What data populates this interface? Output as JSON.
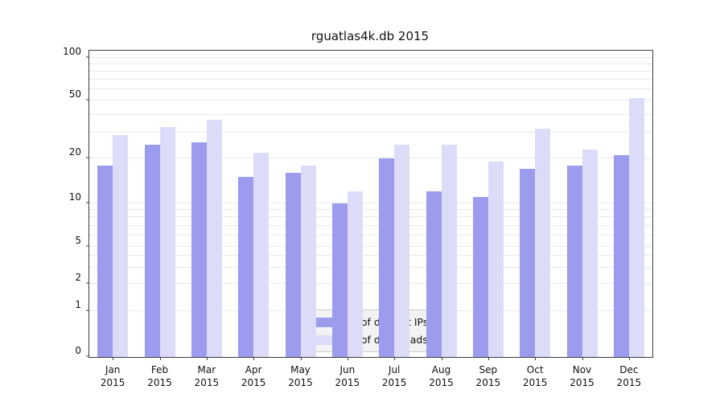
{
  "chart_data": {
    "type": "bar",
    "title": "rguatlas4k.db 2015",
    "categories": [
      "Jan",
      "Feb",
      "Mar",
      "Apr",
      "May",
      "Jun",
      "Jul",
      "Aug",
      "Sep",
      "Oct",
      "Nov",
      "Dec"
    ],
    "year": "2015",
    "series": [
      {
        "name": "Nb of distinct IPs",
        "color": "#9c9cee",
        "values": [
          18,
          25,
          26,
          15,
          16,
          10,
          20,
          12,
          11,
          17,
          18,
          21
        ]
      },
      {
        "name": "Nb of downloads",
        "color": "#dcdcf8",
        "values": [
          29,
          33,
          37,
          22,
          18,
          12,
          25,
          25,
          19,
          32,
          23,
          52
        ]
      }
    ],
    "y_axis": {
      "scale": "symlog",
      "ticks": [
        0,
        1,
        2,
        5,
        10,
        20,
        50,
        100
      ],
      "gridlines": [
        1,
        2,
        3,
        4,
        5,
        6,
        7,
        8,
        9,
        10,
        20,
        30,
        40,
        50,
        60,
        70,
        80,
        90,
        100
      ]
    },
    "legend": {
      "position": "lower center"
    }
  }
}
